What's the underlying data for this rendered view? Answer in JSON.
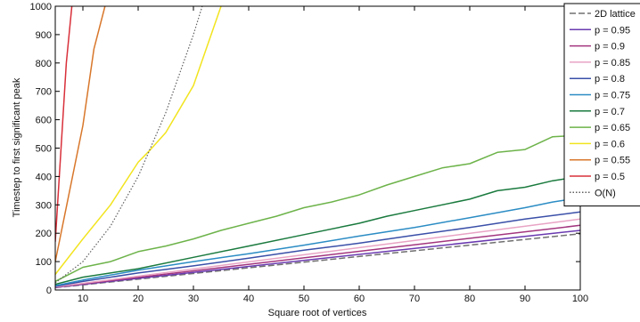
{
  "chart_data": {
    "type": "line",
    "title": "",
    "xlabel": "Square root of vertices",
    "ylabel": "Timestep to first significant peak",
    "xlim": [
      5,
      100
    ],
    "ylim": [
      0,
      1000
    ],
    "xticks": [
      10,
      20,
      30,
      40,
      50,
      60,
      70,
      80,
      90,
      100
    ],
    "yticks": [
      0,
      100,
      200,
      300,
      400,
      500,
      600,
      700,
      800,
      900,
      1000
    ],
    "grid": false,
    "legend_position": "top-right",
    "series": [
      {
        "name": "2D lattice",
        "color": "#707070",
        "style": "dashed",
        "x": [
          5,
          100
        ],
        "y": [
          8,
          198
        ]
      },
      {
        "name": "p = 0.95",
        "color": "#6a3ab0",
        "style": "solid",
        "x": [
          5,
          100
        ],
        "y": [
          9,
          210
        ]
      },
      {
        "name": "p = 0.9",
        "color": "#a3357e",
        "style": "solid",
        "x": [
          5,
          100
        ],
        "y": [
          10,
          228
        ]
      },
      {
        "name": "p = 0.85",
        "color": "#e8a3c4",
        "style": "solid",
        "x": [
          5,
          100
        ],
        "y": [
          11,
          250
        ]
      },
      {
        "name": "p = 0.8",
        "color": "#3a4fa8",
        "style": "solid",
        "x": [
          5,
          10,
          20,
          30,
          40,
          50,
          60,
          70,
          80,
          90,
          100
        ],
        "y": [
          13,
          30,
          60,
          85,
          112,
          140,
          165,
          193,
          220,
          250,
          275
        ]
      },
      {
        "name": "p = 0.75",
        "color": "#2b8cc4",
        "style": "solid",
        "x": [
          5,
          10,
          20,
          30,
          40,
          50,
          60,
          70,
          80,
          90,
          95,
          100
        ],
        "y": [
          15,
          35,
          70,
          100,
          128,
          158,
          190,
          220,
          255,
          290,
          310,
          325
        ]
      },
      {
        "name": "p = 0.7",
        "color": "#1a7a3e",
        "style": "solid",
        "x": [
          5,
          10,
          20,
          30,
          40,
          50,
          60,
          65,
          70,
          80,
          85,
          90,
          95,
          100
        ],
        "y": [
          20,
          45,
          75,
          115,
          155,
          195,
          235,
          260,
          280,
          320,
          350,
          362,
          385,
          400
        ]
      },
      {
        "name": "p = 0.65",
        "color": "#6db34a",
        "style": "solid",
        "x": [
          5,
          10,
          15,
          20,
          25,
          30,
          35,
          40,
          45,
          50,
          55,
          60,
          65,
          70,
          75,
          80,
          85,
          90,
          95,
          100
        ],
        "y": [
          30,
          80,
          100,
          135,
          155,
          180,
          210,
          235,
          260,
          290,
          310,
          335,
          370,
          400,
          430,
          445,
          485,
          495,
          540,
          545
        ]
      },
      {
        "name": "p = 0.6",
        "color": "#f2e41e",
        "style": "solid",
        "x": [
          5,
          10,
          15,
          20,
          22,
          25,
          30,
          35
        ],
        "y": [
          55,
          180,
          300,
          450,
          490,
          555,
          720,
          1000
        ]
      },
      {
        "name": "p = 0.55",
        "color": "#d8772b",
        "style": "solid",
        "x": [
          5,
          10,
          12,
          14
        ],
        "y": [
          100,
          580,
          850,
          1000
        ]
      },
      {
        "name": "p = 0.5",
        "color": "#d8303a",
        "style": "solid",
        "x": [
          5,
          7,
          8
        ],
        "y": [
          170,
          800,
          1000
        ]
      },
      {
        "name": "O(N)",
        "color": "#606060",
        "style": "dotted",
        "x": [
          5,
          10,
          15,
          20,
          25,
          30,
          31.6
        ],
        "y": [
          25,
          100,
          225,
          400,
          625,
          900,
          1000
        ]
      }
    ]
  }
}
